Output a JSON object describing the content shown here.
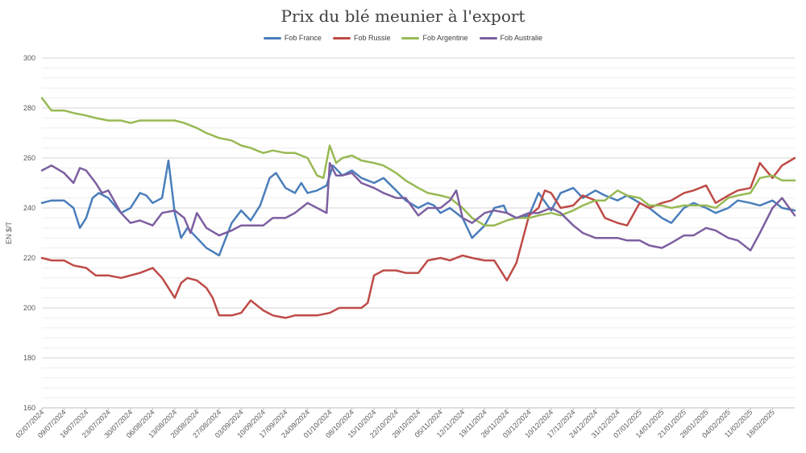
{
  "chart_data": {
    "type": "line",
    "title": "Prix du blé meunier à l'export",
    "ylabel": "EN $/T",
    "xlabel": "",
    "ylim": [
      160,
      300
    ],
    "yticks": [
      160,
      180,
      200,
      220,
      240,
      260,
      280,
      300
    ],
    "grid": true,
    "legend_position": "top-center",
    "x_range": [
      "02/07/2024",
      "25/02/2025"
    ],
    "x_tick_labels": [
      "02/07/2024",
      "09/07/2024",
      "16/07/2024",
      "23/07/2024",
      "30/07/2024",
      "06/08/2024",
      "13/08/2024",
      "20/08/2024",
      "27/08/2024",
      "03/09/2024",
      "10/09/2024",
      "17/09/2024",
      "24/09/2024",
      "01/10/2024",
      "08/10/2024",
      "15/10/2024",
      "22/10/2024",
      "29/10/2024",
      "05/11/2024",
      "12/11/2024",
      "19/11/2024",
      "26/11/2024",
      "03/12/2024",
      "10/12/2024",
      "17/12/2024",
      "24/12/2024",
      "31/12/2024",
      "07/01/2025",
      "14/01/2025",
      "21/01/2025",
      "28/01/2025",
      "04/02/2025",
      "11/02/2025",
      "18/02/2025"
    ],
    "series": [
      {
        "name": "Fob France",
        "color": "#4a7ebb",
        "x": [
          "02/07/2024",
          "05/07/2024",
          "09/07/2024",
          "12/07/2024",
          "14/07/2024",
          "16/07/2024",
          "18/07/2024",
          "20/07/2024",
          "23/07/2024",
          "27/07/2024",
          "30/07/2024",
          "02/08/2024",
          "04/08/2024",
          "06/08/2024",
          "09/08/2024",
          "11/08/2024",
          "13/08/2024",
          "15/08/2024",
          "17/08/2024",
          "20/08/2024",
          "23/08/2024",
          "27/08/2024",
          "31/08/2024",
          "03/09/2024",
          "06/09/2024",
          "09/09/2024",
          "12/09/2024",
          "14/09/2024",
          "17/09/2024",
          "20/09/2024",
          "22/09/2024",
          "24/09/2024",
          "27/09/2024",
          "30/09/2024",
          "02/10/2024",
          "05/10/2024",
          "08/10/2024",
          "11/10/2024",
          "15/10/2024",
          "18/10/2024",
          "22/10/2024",
          "25/10/2024",
          "29/10/2024",
          "01/11/2024",
          "03/11/2024",
          "05/11/2024",
          "08/11/2024",
          "12/11/2024",
          "15/11/2024",
          "19/11/2024",
          "22/11/2024",
          "25/11/2024",
          "26/11/2024",
          "29/11/2024",
          "03/12/2024",
          "06/12/2024",
          "10/12/2024",
          "13/12/2024",
          "17/12/2024",
          "20/12/2024",
          "24/12/2024",
          "27/12/2024",
          "31/12/2024",
          "03/01/2025",
          "07/01/2025",
          "10/01/2025",
          "14/01/2025",
          "17/01/2025",
          "21/01/2025",
          "24/01/2025",
          "28/01/2025",
          "31/01/2025",
          "04/02/2025",
          "07/02/2025",
          "11/02/2025",
          "14/02/2025",
          "18/02/2025",
          "21/02/2025",
          "25/02/2025"
        ],
        "values": [
          242,
          243,
          243,
          240,
          232,
          236,
          244,
          246,
          244,
          238,
          240,
          246,
          245,
          242,
          244,
          259,
          238,
          228,
          232,
          228,
          224,
          221,
          234,
          239,
          235,
          241,
          252,
          254,
          248,
          246,
          250,
          246,
          247,
          249,
          257,
          253,
          255,
          252,
          250,
          252,
          247,
          243,
          240,
          242,
          241,
          238,
          240,
          236,
          228,
          233,
          240,
          241,
          238,
          236,
          237,
          246,
          239,
          246,
          248,
          244,
          247,
          245,
          243,
          245,
          242,
          240,
          236,
          234,
          240,
          242,
          240,
          238,
          240,
          243,
          242,
          241,
          243,
          240,
          239
        ]
      },
      {
        "name": "Fob Russie",
        "color": "#be4b48",
        "x": [
          "02/07/2024",
          "05/07/2024",
          "09/07/2024",
          "12/07/2024",
          "16/07/2024",
          "19/07/2024",
          "23/07/2024",
          "27/07/2024",
          "30/07/2024",
          "02/08/2024",
          "06/08/2024",
          "09/08/2024",
          "11/08/2024",
          "13/08/2024",
          "15/08/2024",
          "17/08/2024",
          "20/08/2024",
          "23/08/2024",
          "25/08/2024",
          "27/08/2024",
          "31/08/2024",
          "03/09/2024",
          "06/09/2024",
          "10/09/2024",
          "13/09/2024",
          "17/09/2024",
          "20/09/2024",
          "24/09/2024",
          "27/09/2024",
          "01/10/2024",
          "04/10/2024",
          "08/10/2024",
          "11/10/2024",
          "13/10/2024",
          "15/10/2024",
          "18/10/2024",
          "22/10/2024",
          "25/10/2024",
          "29/10/2024",
          "01/11/2024",
          "05/11/2024",
          "08/11/2024",
          "12/11/2024",
          "15/11/2024",
          "19/11/2024",
          "22/11/2024",
          "25/11/2024",
          "26/11/2024",
          "29/11/2024",
          "03/12/2024",
          "06/12/2024",
          "08/12/2024",
          "10/12/2024",
          "13/12/2024",
          "17/12/2024",
          "20/12/2024",
          "24/12/2024",
          "27/12/2024",
          "31/12/2024",
          "03/01/2025",
          "07/01/2025",
          "10/01/2025",
          "14/01/2025",
          "17/01/2025",
          "21/01/2025",
          "24/01/2025",
          "28/01/2025",
          "31/01/2025",
          "04/02/2025",
          "07/02/2025",
          "11/02/2025",
          "14/02/2025",
          "18/02/2025",
          "21/02/2025",
          "25/02/2025"
        ],
        "values": [
          220,
          219,
          219,
          217,
          216,
          213,
          213,
          212,
          213,
          214,
          216,
          212,
          208,
          204,
          210,
          212,
          211,
          208,
          204,
          197,
          197,
          198,
          203,
          199,
          197,
          196,
          197,
          197,
          197,
          198,
          200,
          200,
          200,
          202,
          213,
          215,
          215,
          214,
          214,
          219,
          220,
          219,
          221,
          220,
          219,
          219,
          213,
          211,
          218,
          237,
          240,
          247,
          246,
          240,
          241,
          245,
          243,
          236,
          234,
          233,
          242,
          240,
          242,
          243,
          246,
          247,
          249,
          242,
          245,
          247,
          248,
          258,
          252,
          257,
          260
        ]
      },
      {
        "name": "Fob Argentine",
        "color": "#98b954",
        "x": [
          "02/07/2024",
          "05/07/2024",
          "09/07/2024",
          "12/07/2024",
          "16/07/2024",
          "19/07/2024",
          "23/07/2024",
          "27/07/2024",
          "30/07/2024",
          "02/08/2024",
          "06/08/2024",
          "09/08/2024",
          "13/08/2024",
          "16/08/2024",
          "20/08/2024",
          "23/08/2024",
          "27/08/2024",
          "31/08/2024",
          "03/09/2024",
          "06/09/2024",
          "10/09/2024",
          "13/09/2024",
          "17/09/2024",
          "20/09/2024",
          "24/09/2024",
          "27/09/2024",
          "29/09/2024",
          "01/10/2024",
          "03/10/2024",
          "05/10/2024",
          "08/10/2024",
          "11/10/2024",
          "15/10/2024",
          "18/10/2024",
          "22/10/2024",
          "25/10/2024",
          "29/10/2024",
          "01/11/2024",
          "05/11/2024",
          "08/11/2024",
          "12/11/2024",
          "15/11/2024",
          "19/11/2024",
          "22/11/2024",
          "26/11/2024",
          "29/11/2024",
          "03/12/2024",
          "06/12/2024",
          "10/12/2024",
          "13/12/2024",
          "17/12/2024",
          "20/12/2024",
          "24/12/2024",
          "27/12/2024",
          "31/12/2024",
          "03/01/2025",
          "07/01/2025",
          "10/01/2025",
          "14/01/2025",
          "17/01/2025",
          "21/01/2025",
          "24/01/2025",
          "28/01/2025",
          "31/01/2025",
          "04/02/2025",
          "07/02/2025",
          "11/02/2025",
          "14/02/2025",
          "18/02/2025",
          "21/02/2025",
          "25/02/2025"
        ],
        "values": [
          284,
          279,
          279,
          278,
          277,
          276,
          275,
          275,
          274,
          275,
          275,
          275,
          275,
          274,
          272,
          270,
          268,
          267,
          265,
          264,
          262,
          263,
          262,
          262,
          260,
          253,
          252,
          265,
          258,
          260,
          261,
          259,
          258,
          257,
          254,
          251,
          248,
          246,
          245,
          244,
          240,
          236,
          233,
          233,
          235,
          236,
          236,
          237,
          238,
          237,
          239,
          241,
          243,
          243,
          247,
          245,
          244,
          241,
          241,
          240,
          241,
          241,
          241,
          240,
          244,
          245,
          246,
          252,
          253,
          251,
          251
        ]
      },
      {
        "name": "Fob Australie",
        "color": "#7d5fa0",
        "x": [
          "02/07/2024",
          "05/07/2024",
          "09/07/2024",
          "12/07/2024",
          "14/07/2024",
          "16/07/2024",
          "19/07/2024",
          "21/07/2024",
          "23/07/2024",
          "27/07/2024",
          "30/07/2024",
          "02/08/2024",
          "06/08/2024",
          "09/08/2024",
          "13/08/2024",
          "16/08/2024",
          "18/08/2024",
          "20/08/2024",
          "23/08/2024",
          "27/08/2024",
          "31/08/2024",
          "03/09/2024",
          "06/09/2024",
          "10/09/2024",
          "13/09/2024",
          "17/09/2024",
          "20/09/2024",
          "24/09/2024",
          "27/09/2024",
          "30/09/2024",
          "01/10/2024",
          "03/10/2024",
          "05/10/2024",
          "08/10/2024",
          "11/10/2024",
          "15/10/2024",
          "18/10/2024",
          "22/10/2024",
          "25/10/2024",
          "29/10/2024",
          "01/11/2024",
          "05/11/2024",
          "08/11/2024",
          "10/11/2024",
          "12/11/2024",
          "15/11/2024",
          "19/11/2024",
          "22/11/2024",
          "26/11/2024",
          "29/11/2024",
          "03/12/2024",
          "06/12/2024",
          "10/12/2024",
          "13/12/2024",
          "17/12/2024",
          "20/12/2024",
          "24/12/2024",
          "27/12/2024",
          "31/12/2024",
          "03/01/2025",
          "07/01/2025",
          "10/01/2025",
          "14/01/2025",
          "17/01/2025",
          "21/01/2025",
          "24/01/2025",
          "28/01/2025",
          "31/01/2025",
          "04/02/2025",
          "07/02/2025",
          "11/02/2025",
          "14/02/2025",
          "18/02/2025",
          "21/02/2025",
          "25/02/2025"
        ],
        "values": [
          255,
          257,
          254,
          250,
          256,
          255,
          250,
          246,
          247,
          238,
          234,
          235,
          233,
          238,
          239,
          236,
          230,
          238,
          232,
          229,
          231,
          233,
          233,
          233,
          236,
          236,
          238,
          242,
          240,
          238,
          258,
          253,
          253,
          254,
          250,
          248,
          246,
          244,
          244,
          237,
          240,
          240,
          243,
          247,
          236,
          234,
          238,
          239,
          238,
          236,
          238,
          238,
          240,
          238,
          233,
          230,
          228,
          228,
          228,
          227,
          227,
          225,
          224,
          226,
          229,
          229,
          232,
          231,
          228,
          227,
          223,
          230,
          240,
          244,
          237
        ]
      }
    ]
  }
}
